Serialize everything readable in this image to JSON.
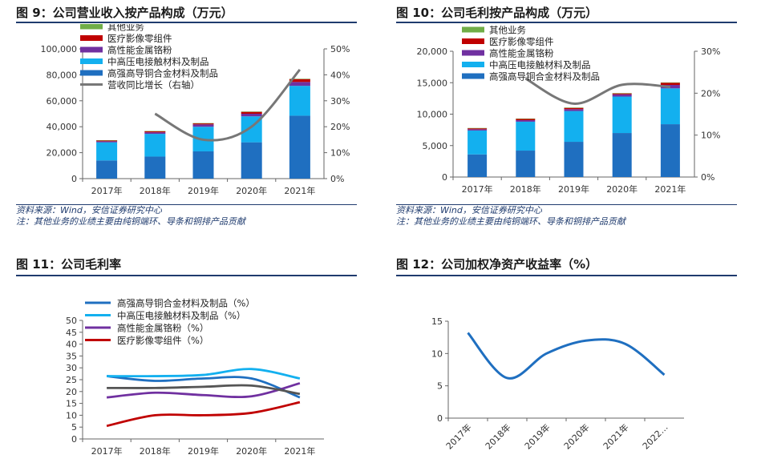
{
  "chart_data": [
    {
      "id": "fig9",
      "type": "bar",
      "title": "图 9：公司营业收入按产品构成（万元）",
      "categories": [
        "2017年",
        "2018年",
        "2019年",
        "2020年",
        "2021年"
      ],
      "series": [
        {
          "name": "高强高导铜合金材料及制品",
          "color": "#1f6fc0",
          "values": [
            14000,
            17000,
            21000,
            28000,
            48500
          ]
        },
        {
          "name": "中高压电接触材料及制品",
          "color": "#13b0ef",
          "values": [
            14000,
            17500,
            19000,
            20000,
            23000
          ]
        },
        {
          "name": "高性能金属铬粉",
          "color": "#7030a0",
          "values": [
            800,
            1200,
            1800,
            2000,
            3000
          ]
        },
        {
          "name": "医疗影像零组件",
          "color": "#c00000",
          "values": [
            700,
            800,
            800,
            1500,
            2200
          ]
        },
        {
          "name": "其他业务",
          "color": "#70ad47",
          "values": [
            100,
            200,
            200,
            200,
            300
          ]
        }
      ],
      "line": {
        "name": "营收同比增长（右轴）",
        "color": "#777777",
        "values": [
          null,
          25,
          15,
          20,
          42
        ]
      },
      "ylim": [
        0,
        100000
      ],
      "yticks": [
        "0",
        "20,000",
        "40,000",
        "60,000",
        "80,000",
        "100,000"
      ],
      "y2lim": [
        0,
        50
      ],
      "y2ticks": [
        "0%",
        "10%",
        "20%",
        "30%",
        "40%",
        "50%"
      ],
      "source": "资料来源：Wind，安信证券研究中心",
      "note": "注：其他业务的业绩主要由纯铜端环、导条和铜排产品贡献"
    },
    {
      "id": "fig10",
      "type": "bar",
      "title": "图 10：公司毛利按产品构成（万元）",
      "categories": [
        "2017年",
        "2018年",
        "2019年",
        "2020年",
        "2021年"
      ],
      "series": [
        {
          "name": "高强高导铜合金材料及制品",
          "color": "#1f6fc0",
          "values": [
            3600,
            4200,
            5600,
            7000,
            8400
          ]
        },
        {
          "name": "中高压电接触材料及制品",
          "color": "#13b0ef",
          "values": [
            3800,
            4600,
            4900,
            5800,
            5700
          ]
        },
        {
          "name": "高性能金属铬粉",
          "color": "#7030a0",
          "values": [
            200,
            250,
            300,
            350,
            550
          ]
        },
        {
          "name": "医疗影像零组件",
          "color": "#c00000",
          "values": [
            150,
            200,
            200,
            150,
            350
          ]
        },
        {
          "name": "其他业务",
          "color": "#70ad47",
          "values": [
            50,
            50,
            50,
            50,
            50
          ]
        }
      ],
      "line": {
        "name": "",
        "color": "#777777",
        "values": [
          null,
          23.5,
          17.5,
          22,
          21.5
        ]
      },
      "ylim": [
        0,
        20000
      ],
      "yticks": [
        "0",
        "5,000",
        "10,000",
        "15,000",
        "20,000"
      ],
      "y2lim": [
        0,
        30
      ],
      "y2ticks": [
        "0%",
        "10%",
        "20%",
        "30%"
      ],
      "source": "资料来源：Wind，安信证券研究中心",
      "note": "注：其他业务的业绩主要由纯铜端环、导条和铜排产品贡献"
    },
    {
      "id": "fig11",
      "type": "line",
      "title": "图 11：公司毛利率",
      "categories": [
        "2017年",
        "2018年",
        "2019年",
        "2020年",
        "2021年"
      ],
      "series": [
        {
          "name": "高强高导铜合金材料及制品（%）",
          "color": "#1f6fc0",
          "values": [
            26.5,
            24.5,
            25.5,
            25.5,
            17.5
          ]
        },
        {
          "name": "中高压电接触材料及制品（%）",
          "color": "#13b0ef",
          "values": [
            26.5,
            26.5,
            27,
            29.5,
            25.5
          ]
        },
        {
          "name": "高性能金属铬粉（%）",
          "color": "#7030a0",
          "values": [
            17.5,
            19.5,
            18.5,
            18,
            23.5
          ]
        },
        {
          "name": "医疗影像零组件（%）",
          "color": "#c00000",
          "values": [
            5.5,
            10,
            10,
            11,
            15.5
          ]
        },
        {
          "name": "",
          "color": "#555555",
          "values": [
            21.5,
            21.5,
            22,
            22.5,
            19
          ]
        }
      ],
      "ylim": [
        0,
        50
      ],
      "yticks": [
        "0",
        "5",
        "10",
        "15",
        "20",
        "25",
        "30",
        "35",
        "40",
        "45",
        "50"
      ]
    },
    {
      "id": "fig12",
      "type": "line",
      "title": "图 12：公司加权净资产收益率（%）",
      "categories": [
        "2017年",
        "2018年",
        "2019年",
        "2020年",
        "2021年",
        "2022…"
      ],
      "series": [
        {
          "name": "加权净资产收益率",
          "color": "#1f6fc0",
          "values": [
            13.2,
            6.2,
            10,
            12,
            11.5,
            6.7
          ]
        }
      ],
      "ylim": [
        0,
        15
      ],
      "yticks": [
        "0",
        "5",
        "10",
        "15"
      ]
    }
  ]
}
